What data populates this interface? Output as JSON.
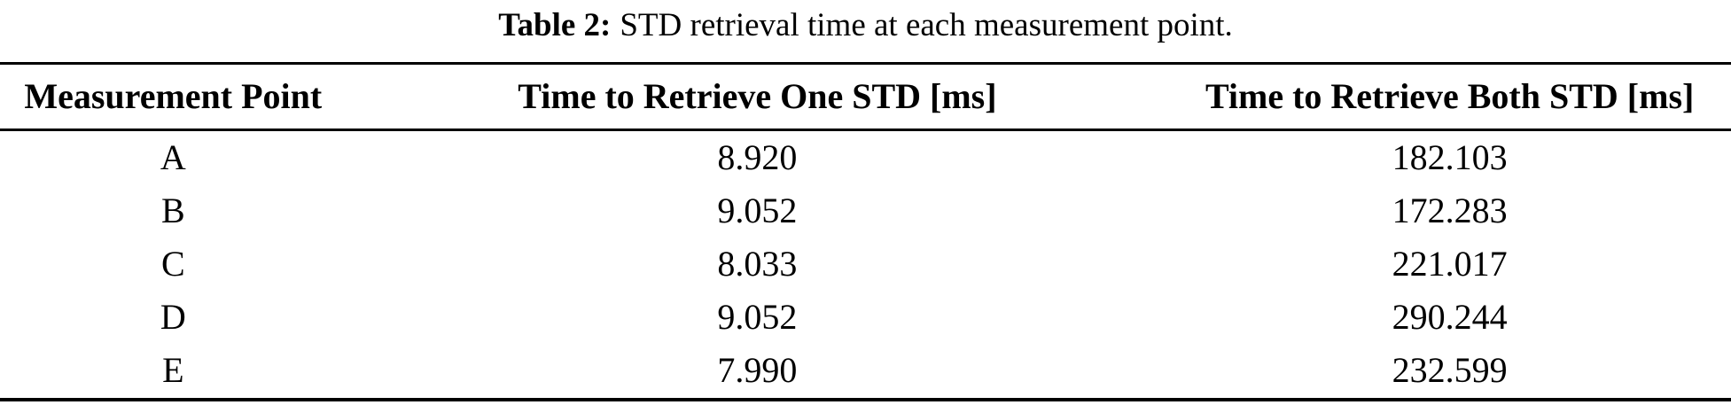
{
  "caption": {
    "label": "Table 2:",
    "text": "STD retrieval time at each measurement point."
  },
  "table": {
    "headers": [
      "Measurement Point",
      "Time to Retrieve One STD [ms]",
      "Time to Retrieve Both STD [ms]"
    ],
    "rows": [
      [
        "A",
        "8.920",
        "182.103"
      ],
      [
        "B",
        "9.052",
        "172.283"
      ],
      [
        "C",
        "8.033",
        "221.017"
      ],
      [
        "D",
        "9.052",
        "290.244"
      ],
      [
        "E",
        "7.990",
        "232.599"
      ]
    ]
  },
  "colors": {
    "text": "#000000",
    "background": "#ffffff",
    "rule": "#000000"
  },
  "chart_data": {
    "type": "table",
    "title": "Table 2: STD retrieval time at each measurement point.",
    "columns": [
      "Measurement Point",
      "Time to Retrieve One STD [ms]",
      "Time to Retrieve Both STD [ms]"
    ],
    "rows": [
      {
        "measurement_point": "A",
        "time_one_std_ms": 8.92,
        "time_both_std_ms": 182.103
      },
      {
        "measurement_point": "B",
        "time_one_std_ms": 9.052,
        "time_both_std_ms": 172.283
      },
      {
        "measurement_point": "C",
        "time_one_std_ms": 8.033,
        "time_both_std_ms": 221.017
      },
      {
        "measurement_point": "D",
        "time_one_std_ms": 9.052,
        "time_both_std_ms": 290.244
      },
      {
        "measurement_point": "E",
        "time_one_std_ms": 7.99,
        "time_both_std_ms": 232.599
      }
    ]
  }
}
